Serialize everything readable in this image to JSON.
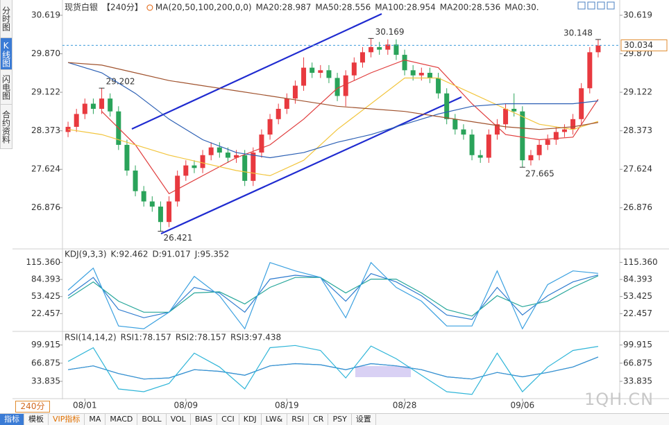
{
  "ui": {
    "sidebar": [
      "分时图",
      "K线图",
      "闪电图",
      "合约资料"
    ],
    "period": "240分",
    "toolbar": [
      "指标",
      "模板",
      "VIP指标",
      "MA",
      "MACD",
      "BOLL",
      "VOL",
      "BIAS",
      "CCI",
      "KDJ",
      "LW&",
      "RSI",
      "CR",
      "PSY",
      "设置"
    ],
    "watermark": "1QH.CN"
  },
  "chart_data": [
    {
      "type": "candlestick",
      "title": "现货白银",
      "subtitle": "【240分】",
      "ma_label": "MA(20,50,100,200,0,0)",
      "extra_label": "MA0:30.",
      "categories": [
        null,
        null,
        "08/01",
        null,
        null,
        null,
        null,
        null,
        null,
        null,
        null,
        null,
        null,
        null,
        "08/09",
        null,
        null,
        null,
        null,
        null,
        null,
        null,
        null,
        null,
        null,
        null,
        "08/19",
        null,
        null,
        null,
        null,
        null,
        null,
        null,
        null,
        null,
        null,
        null,
        null,
        null,
        "08/28",
        null,
        null,
        null,
        null,
        null,
        null,
        null,
        null,
        null,
        null,
        null,
        null,
        null,
        "09/06",
        null,
        null,
        null,
        null,
        null,
        null,
        null,
        null,
        null
      ],
      "open": [
        28.35,
        28.45,
        28.7,
        28.9,
        28.8,
        29.0,
        28.75,
        28.1,
        27.6,
        27.2,
        27.0,
        26.9,
        26.6,
        27.0,
        27.5,
        27.7,
        27.65,
        27.9,
        28.05,
        27.95,
        27.85,
        27.9,
        27.4,
        27.95,
        28.3,
        28.6,
        28.8,
        29.0,
        29.25,
        29.6,
        29.5,
        29.55,
        29.4,
        29.05,
        29.45,
        29.7,
        29.9,
        30.0,
        29.95,
        30.05,
        29.85,
        29.55,
        29.45,
        29.5,
        29.4,
        29.1,
        28.6,
        28.4,
        28.3,
        27.9,
        27.85,
        28.3,
        28.5,
        28.8,
        28.75,
        27.8,
        27.9,
        28.1,
        28.2,
        28.35,
        28.4,
        28.6,
        29.2,
        29.9
      ],
      "high": [
        28.55,
        28.8,
        29.0,
        29.0,
        29.202,
        29.1,
        28.85,
        28.2,
        27.7,
        27.3,
        27.1,
        27.0,
        27.1,
        27.6,
        27.8,
        27.8,
        28.0,
        28.15,
        28.15,
        28.05,
        28.0,
        28.0,
        28.05,
        28.4,
        28.7,
        28.9,
        29.1,
        29.35,
        29.8,
        29.7,
        29.65,
        29.65,
        29.5,
        29.55,
        29.8,
        30.0,
        30.169,
        30.1,
        30.15,
        30.15,
        29.95,
        29.65,
        29.6,
        29.6,
        29.5,
        29.2,
        28.7,
        28.5,
        28.4,
        28.0,
        28.4,
        28.6,
        28.9,
        29.1,
        28.85,
        28.0,
        28.2,
        28.3,
        28.45,
        28.5,
        28.7,
        29.3,
        30.0,
        30.148
      ],
      "low": [
        28.25,
        28.35,
        28.6,
        28.7,
        28.7,
        28.65,
        28.0,
        27.5,
        27.1,
        26.9,
        26.8,
        26.421,
        26.5,
        26.9,
        27.4,
        27.55,
        27.55,
        27.8,
        27.85,
        27.75,
        27.75,
        27.3,
        27.3,
        27.85,
        28.2,
        28.5,
        28.7,
        28.9,
        29.15,
        29.4,
        29.4,
        29.3,
        28.95,
        28.85,
        29.35,
        29.6,
        29.8,
        29.85,
        29.85,
        29.75,
        29.45,
        29.35,
        29.35,
        29.3,
        29.0,
        28.5,
        28.3,
        28.2,
        27.8,
        27.75,
        27.75,
        28.2,
        28.4,
        28.65,
        27.665,
        27.7,
        27.8,
        28.0,
        28.1,
        28.25,
        28.3,
        28.5,
        29.1,
        29.8
      ],
      "close": [
        28.45,
        28.7,
        28.9,
        28.8,
        29.0,
        28.75,
        28.1,
        27.6,
        27.2,
        27.0,
        26.9,
        26.6,
        27.0,
        27.5,
        27.7,
        27.65,
        27.9,
        28.05,
        27.95,
        27.85,
        27.9,
        27.4,
        27.95,
        28.3,
        28.6,
        28.8,
        29.0,
        29.25,
        29.6,
        29.5,
        29.55,
        29.4,
        29.05,
        29.45,
        29.7,
        29.9,
        30.0,
        29.95,
        30.05,
        29.85,
        29.55,
        29.45,
        29.5,
        29.4,
        29.1,
        28.6,
        28.4,
        28.3,
        27.9,
        27.85,
        28.3,
        28.5,
        28.8,
        28.75,
        27.8,
        27.9,
        28.1,
        28.2,
        28.35,
        28.4,
        28.6,
        29.2,
        29.9,
        30.03
      ],
      "up_color": "#e8393f",
      "down_color": "#2aa35a",
      "high_label_color": "#e8393f",
      "low_label_color": "#2aa35a",
      "last_price": 30.034,
      "ylim": [
        26.091,
        30.848
      ],
      "yticks": [
        26.876,
        27.624,
        28.373,
        29.122,
        {
          "value": 29.87,
          "label": "29.870"
        },
        30.619
      ],
      "series": [
        {
          "name": "MA20:28.987",
          "color": "#e03c3c",
          "x": [
            0,
            4,
            8,
            12,
            16,
            20,
            24,
            28,
            32,
            36,
            40,
            44,
            48,
            52,
            56,
            60,
            63
          ],
          "values": [
            null,
            28.75,
            28.1,
            27.15,
            27.5,
            27.85,
            28.1,
            28.6,
            29.2,
            29.5,
            29.75,
            29.6,
            28.9,
            28.3,
            28.2,
            28.25,
            28.987
          ]
        },
        {
          "name": "MA50:28.556",
          "color": "#f2c53d",
          "x": [
            0,
            4,
            8,
            12,
            16,
            20,
            24,
            28,
            32,
            36,
            40,
            44,
            48,
            52,
            56,
            60,
            63
          ],
          "values": [
            28.4,
            28.3,
            28.1,
            27.9,
            27.75,
            27.6,
            27.5,
            27.8,
            28.4,
            28.9,
            29.4,
            29.4,
            29.1,
            28.8,
            28.5,
            28.4,
            28.556
          ]
        },
        {
          "name": "MA100:28.954",
          "color": "#2b5fb4",
          "x": [
            0,
            4,
            8,
            12,
            16,
            20,
            24,
            28,
            32,
            36,
            40,
            44,
            48,
            52,
            56,
            60,
            63
          ],
          "values": [
            29.7,
            29.5,
            29.1,
            28.6,
            28.2,
            27.95,
            27.85,
            27.95,
            28.15,
            28.3,
            28.5,
            28.7,
            28.85,
            28.9,
            28.9,
            28.9,
            28.954
          ]
        },
        {
          "name": "MA200:28.536",
          "color": "#a0522d",
          "x": [
            0,
            4,
            8,
            12,
            16,
            20,
            24,
            28,
            32,
            36,
            40,
            44,
            48,
            52,
            56,
            60,
            63
          ],
          "values": [
            29.7,
            29.65,
            29.5,
            29.35,
            29.25,
            29.15,
            29.05,
            28.95,
            28.85,
            28.8,
            28.75,
            28.65,
            28.55,
            28.45,
            28.4,
            28.45,
            28.536
          ]
        }
      ]
    },
    {
      "type": "line",
      "title": "KDJ(9,3,3)",
      "ylim": [
        -8.5,
        136
      ],
      "yticks": [
        22.457,
        53.425,
        84.393,
        {
          "value": 115.36,
          "label": "115.360"
        }
      ],
      "series": [
        {
          "name": "K:92.462",
          "color": "#2e7bcf",
          "x": [
            0,
            3,
            6,
            9,
            12,
            15,
            18,
            21,
            24,
            27,
            30,
            33,
            36,
            39,
            42,
            45,
            48,
            51,
            54,
            57,
            60,
            63
          ],
          "values": [
            55,
            88,
            30,
            15,
            25,
            70,
            60,
            25,
            85,
            92,
            88,
            45,
            95,
            80,
            55,
            20,
            12,
            70,
            20,
            55,
            80,
            92.462
          ]
        },
        {
          "name": "D:91.017",
          "color": "#26a69a",
          "x": [
            0,
            3,
            6,
            9,
            12,
            15,
            18,
            21,
            24,
            27,
            30,
            33,
            36,
            39,
            42,
            45,
            48,
            51,
            54,
            57,
            60,
            63
          ],
          "values": [
            50,
            80,
            45,
            25,
            25,
            60,
            62,
            40,
            70,
            88,
            88,
            60,
            85,
            85,
            60,
            30,
            18,
            55,
            35,
            45,
            70,
            91.017
          ]
        },
        {
          "name": "J:95.352",
          "color": "#3aa0e0",
          "x": [
            0,
            3,
            6,
            9,
            12,
            15,
            18,
            21,
            24,
            27,
            30,
            33,
            36,
            39,
            42,
            45,
            48,
            51,
            54,
            57,
            60,
            63
          ],
          "values": [
            65,
            105,
            0,
            -5,
            25,
            90,
            55,
            -5,
            115,
            100,
            88,
            15,
            115,
            70,
            45,
            0,
            0,
            100,
            -5,
            75,
            100,
            95.352
          ]
        }
      ]
    },
    {
      "type": "line",
      "title": "RSI(14,14,2)",
      "ylim": [
        3.6,
        119.6
      ],
      "yticks": [
        33.835,
        66.875,
        99.915
      ],
      "series": [
        {
          "name": "RSI1:78.157",
          "color": "#26a69a",
          "x": [
            0,
            3,
            6,
            9,
            12,
            15,
            18,
            21,
            24,
            27,
            30,
            33,
            36,
            39,
            42,
            45,
            48,
            51,
            54,
            57,
            60,
            63
          ],
          "values": [
            55,
            62,
            48,
            38,
            40,
            55,
            52,
            45,
            62,
            66,
            64,
            55,
            66,
            62,
            55,
            42,
            38,
            50,
            42,
            50,
            60,
            78.157
          ]
        },
        {
          "name": "RSI2:78.157",
          "color": "#3a8fd8",
          "x": [
            0,
            3,
            6,
            9,
            12,
            15,
            18,
            21,
            24,
            27,
            30,
            33,
            36,
            39,
            42,
            45,
            48,
            51,
            54,
            57,
            60,
            63
          ],
          "values": [
            55,
            62,
            48,
            38,
            40,
            55,
            52,
            45,
            62,
            66,
            64,
            55,
            66,
            62,
            55,
            42,
            38,
            50,
            42,
            50,
            60,
            78.157
          ]
        },
        {
          "name": "RSI3:97.438",
          "color": "#2fb5d8",
          "x": [
            0,
            3,
            6,
            9,
            12,
            15,
            18,
            21,
            24,
            27,
            30,
            33,
            36,
            39,
            42,
            45,
            48,
            51,
            54,
            57,
            60,
            63
          ],
          "values": [
            70,
            95,
            20,
            15,
            30,
            85,
            60,
            20,
            95,
            99,
            90,
            40,
            98,
            75,
            45,
            15,
            10,
            85,
            15,
            60,
            90,
            97.438
          ]
        }
      ]
    }
  ]
}
